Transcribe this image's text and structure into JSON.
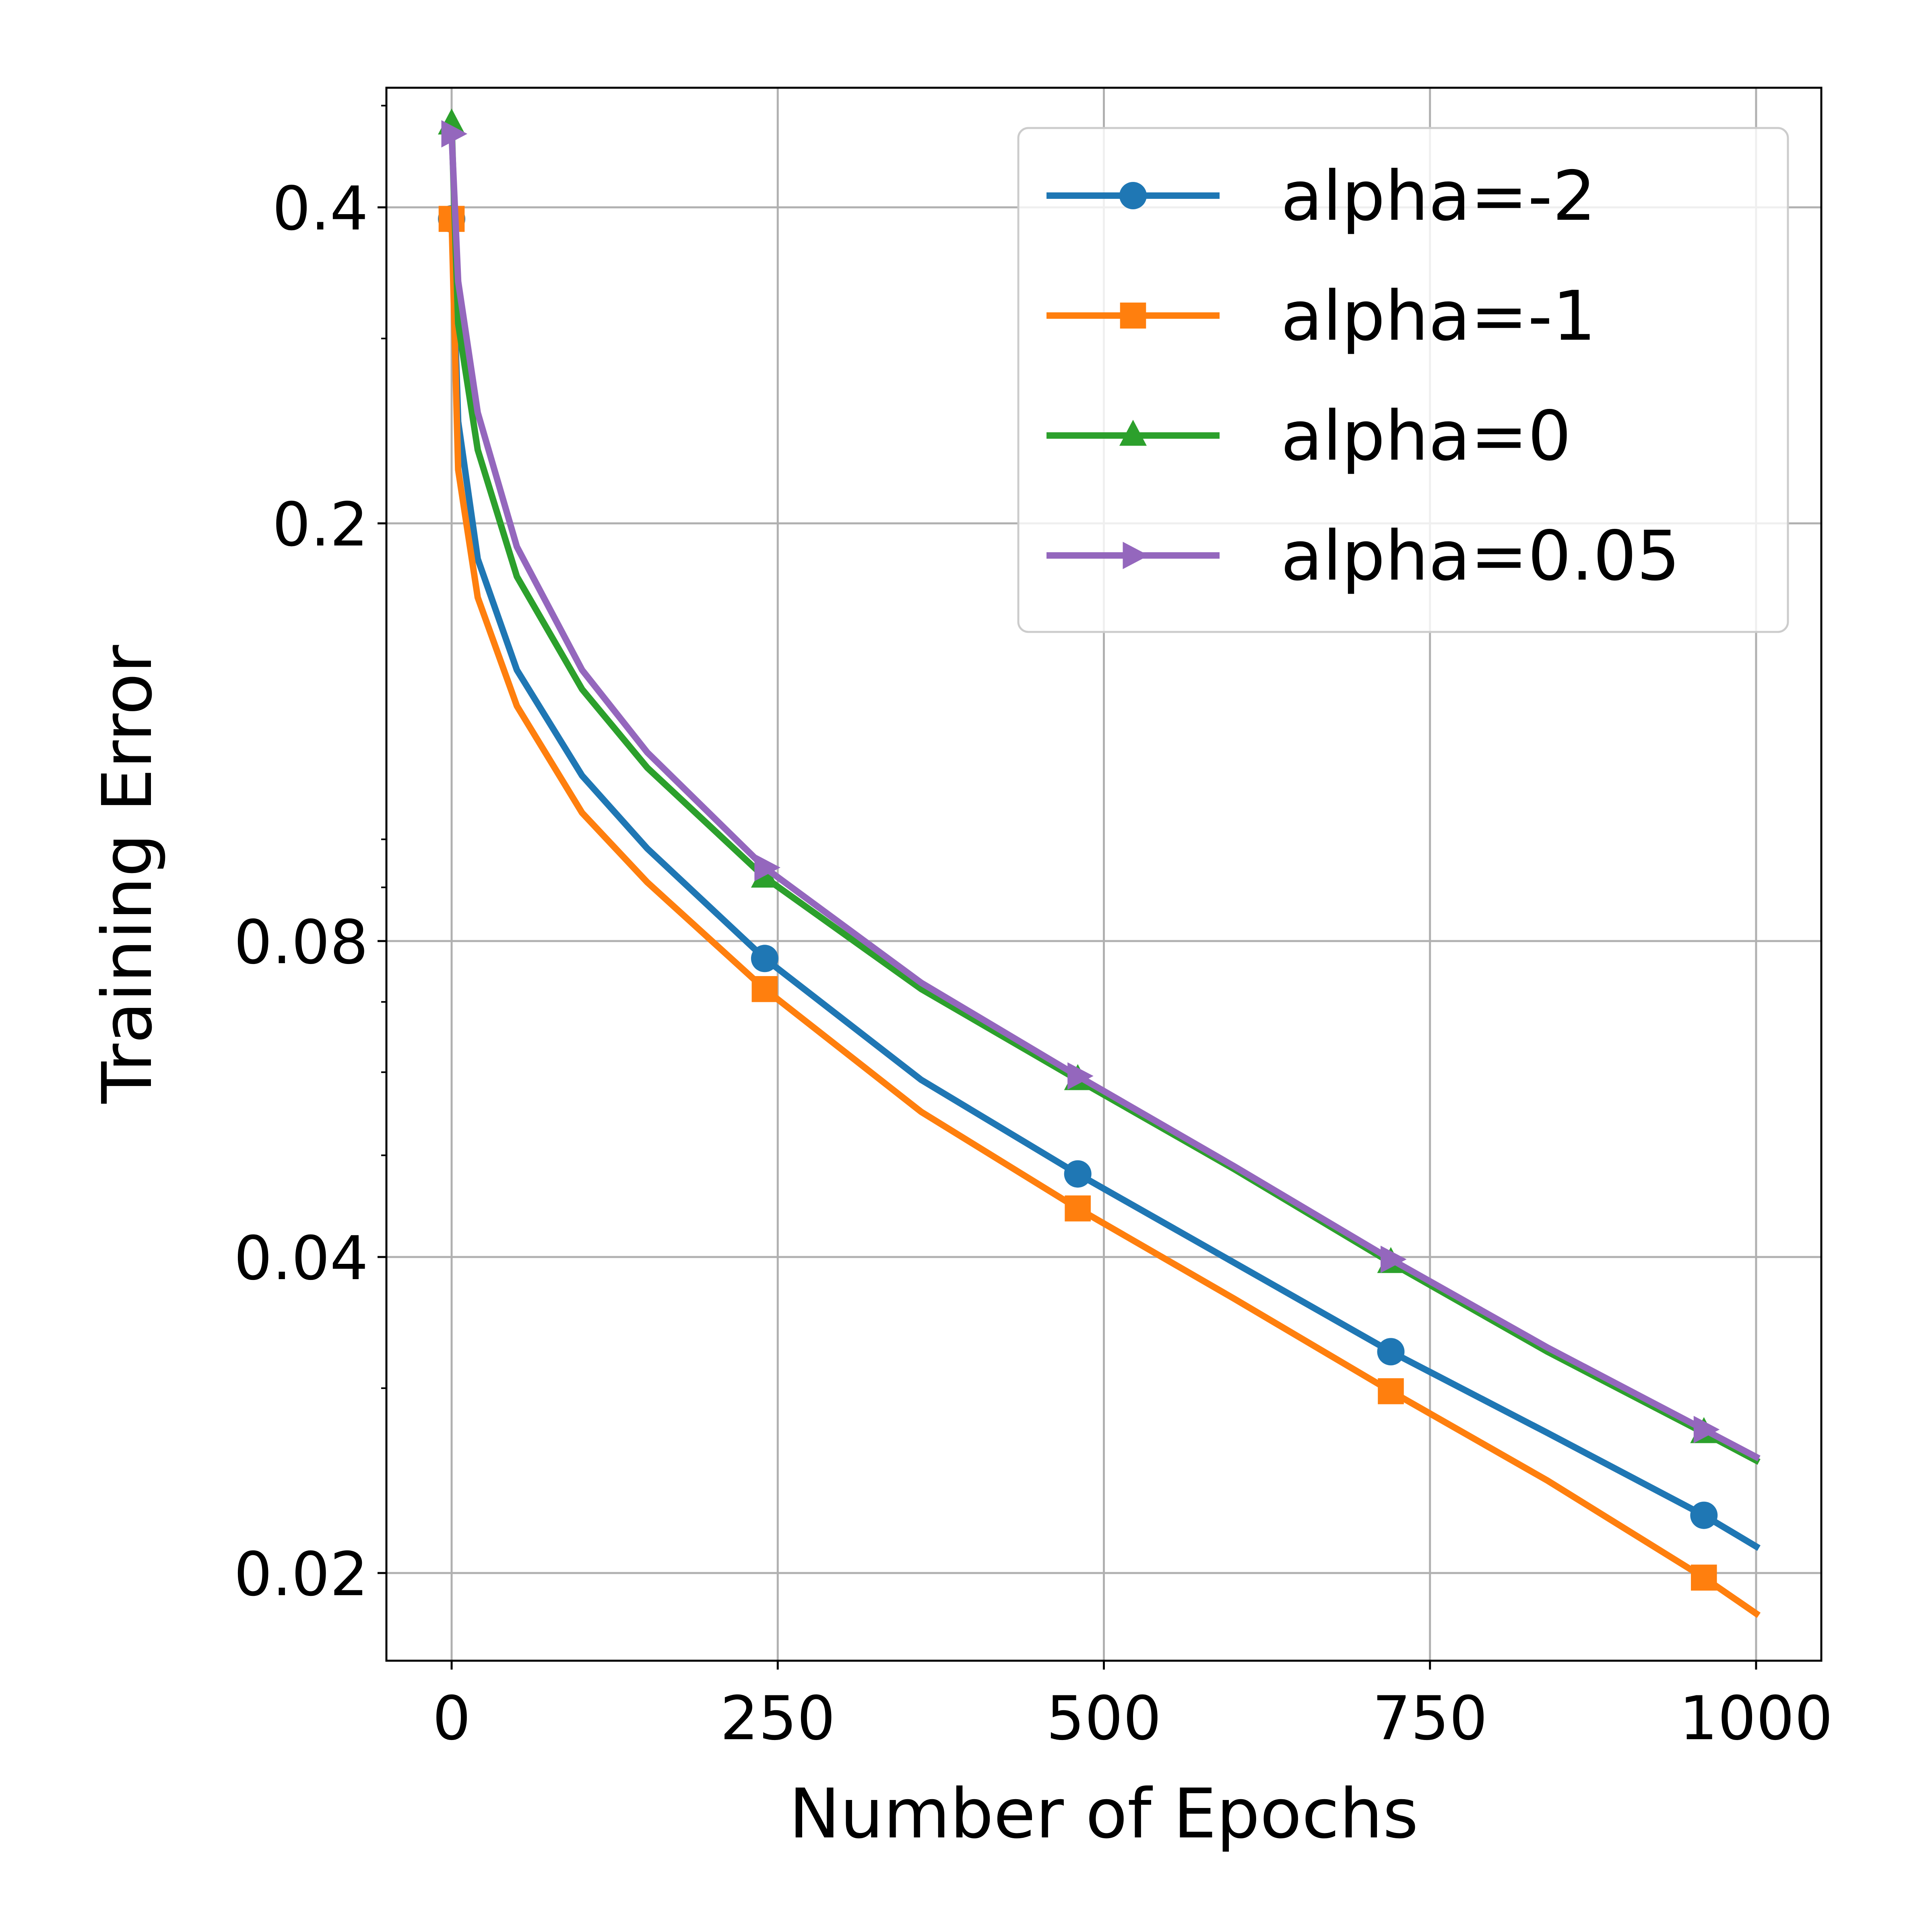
{
  "chart_data": {
    "type": "line",
    "title": "",
    "xlabel": "Number of Epochs",
    "ylabel": "Training Error",
    "yscale": "log",
    "xlim": [
      -50,
      1050
    ],
    "ylim": [
      0.0165,
      0.52
    ],
    "xticks": [
      0,
      250,
      500,
      750,
      1000
    ],
    "xtick_labels": [
      "0",
      "250",
      "500",
      "750",
      "1000"
    ],
    "yticks": [
      0.02,
      0.04,
      0.08,
      0.2,
      0.4
    ],
    "ytick_labels": [
      "0.02",
      "0.04",
      "0.08",
      "0.2",
      "0.4"
    ],
    "grid": true,
    "legend_position": "top-right",
    "series": [
      {
        "name": "alpha=-2",
        "color": "#1f77b4",
        "marker": "circle",
        "x": [
          0,
          5,
          20,
          50,
          100,
          150,
          240,
          360,
          480,
          600,
          720,
          840,
          960,
          1000
        ],
        "y": [
          0.39,
          0.25,
          0.185,
          0.145,
          0.115,
          0.098,
          0.077,
          0.059,
          0.048,
          0.0395,
          0.0325,
          0.0272,
          0.0227,
          0.0212
        ],
        "marker_x": [
          0,
          240,
          480,
          720,
          960
        ]
      },
      {
        "name": "alpha=-1",
        "color": "#ff7f0e",
        "marker": "square",
        "x": [
          0,
          5,
          20,
          50,
          100,
          150,
          240,
          360,
          480,
          600,
          720,
          840,
          960,
          1000
        ],
        "y": [
          0.39,
          0.225,
          0.17,
          0.134,
          0.106,
          0.091,
          0.072,
          0.055,
          0.0445,
          0.0365,
          0.0298,
          0.0245,
          0.0198,
          0.0183
        ],
        "marker_x": [
          0,
          240,
          480,
          720,
          960
        ]
      },
      {
        "name": "alpha=0",
        "color": "#2ca02c",
        "marker": "triangle-up",
        "x": [
          0,
          5,
          20,
          50,
          100,
          150,
          240,
          360,
          480,
          600,
          720,
          840,
          960,
          1000
        ],
        "y": [
          0.48,
          0.31,
          0.235,
          0.178,
          0.139,
          0.117,
          0.092,
          0.072,
          0.059,
          0.0485,
          0.0395,
          0.0325,
          0.0272,
          0.0256
        ],
        "marker_x": [
          0,
          240,
          480,
          720,
          960
        ]
      },
      {
        "name": "alpha=0.05",
        "color": "#9467bd",
        "marker": "triangle-right",
        "x": [
          0,
          5,
          20,
          50,
          100,
          150,
          240,
          360,
          480,
          600,
          720,
          840,
          960,
          1000
        ],
        "y": [
          0.47,
          0.34,
          0.255,
          0.19,
          0.145,
          0.121,
          0.094,
          0.073,
          0.0595,
          0.0488,
          0.0398,
          0.0328,
          0.0274,
          0.0258
        ],
        "marker_x": [
          0,
          240,
          480,
          720,
          960
        ]
      }
    ]
  }
}
